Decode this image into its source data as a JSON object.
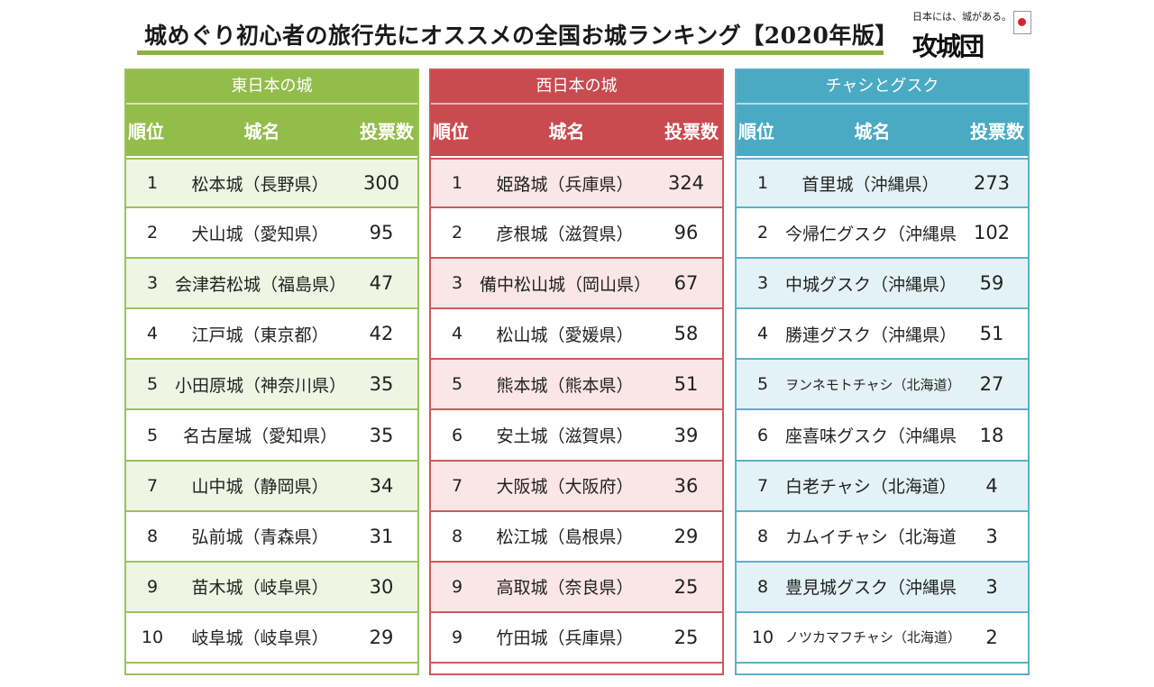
{
  "title": "城めぐり初心者の旅行先にオススメの全国お城ランキング【2020年版】",
  "logo": {
    "tagline": "日本には、城がある。",
    "mark": "攻城団"
  },
  "columns": {
    "rank": "順位",
    "name": "城名",
    "votes": "投票数"
  },
  "panels": {
    "east": {
      "heading": "東日本の城",
      "rows": [
        {
          "rank": "1",
          "name": "松本城（長野県）",
          "votes": "300"
        },
        {
          "rank": "2",
          "name": "犬山城（愛知県）",
          "votes": "95"
        },
        {
          "rank": "3",
          "name": "会津若松城（福島県）",
          "votes": "47"
        },
        {
          "rank": "4",
          "name": "江戸城（東京都）",
          "votes": "42"
        },
        {
          "rank": "5",
          "name": "小田原城（神奈川県）",
          "votes": "35"
        },
        {
          "rank": "5",
          "name": "名古屋城（愛知県）",
          "votes": "35"
        },
        {
          "rank": "7",
          "name": "山中城（静岡県）",
          "votes": "34"
        },
        {
          "rank": "8",
          "name": "弘前城（青森県）",
          "votes": "31"
        },
        {
          "rank": "9",
          "name": "苗木城（岐阜県）",
          "votes": "30"
        },
        {
          "rank": "10",
          "name": "岐阜城（岐阜県）",
          "votes": "29"
        }
      ]
    },
    "west": {
      "heading": "西日本の城",
      "rows": [
        {
          "rank": "1",
          "name": "姫路城（兵庫県）",
          "votes": "324"
        },
        {
          "rank": "2",
          "name": "彦根城（滋賀県）",
          "votes": "96"
        },
        {
          "rank": "3",
          "name": "備中松山城（岡山県）",
          "votes": "67"
        },
        {
          "rank": "4",
          "name": "松山城（愛媛県）",
          "votes": "58"
        },
        {
          "rank": "5",
          "name": "熊本城（熊本県）",
          "votes": "51"
        },
        {
          "rank": "6",
          "name": "安土城（滋賀県）",
          "votes": "39"
        },
        {
          "rank": "7",
          "name": "大阪城（大阪府）",
          "votes": "36"
        },
        {
          "rank": "8",
          "name": "松江城（島根県）",
          "votes": "29"
        },
        {
          "rank": "9",
          "name": "高取城（奈良県）",
          "votes": "25"
        },
        {
          "rank": "9",
          "name": "竹田城（兵庫県）",
          "votes": "25"
        }
      ]
    },
    "ryukyu": {
      "heading": "チャシとグスク",
      "rows": [
        {
          "rank": "1",
          "name": "首里城（沖縄県）",
          "votes": "273"
        },
        {
          "rank": "2",
          "name": "今帰仁グスク（沖縄県）",
          "votes": "102"
        },
        {
          "rank": "3",
          "name": "中城グスク（沖縄県）",
          "votes": "59"
        },
        {
          "rank": "4",
          "name": "勝連グスク（沖縄県）",
          "votes": "51"
        },
        {
          "rank": "5",
          "name": "ヲンネモトチャシ（北海道）",
          "votes": "27"
        },
        {
          "rank": "6",
          "name": "座喜味グスク（沖縄県）",
          "votes": "18"
        },
        {
          "rank": "7",
          "name": "白老チャシ（北海道）",
          "votes": "4"
        },
        {
          "rank": "8",
          "name": "カムイチャシ（北海道）",
          "votes": "3"
        },
        {
          "rank": "8",
          "name": "豊見城グスク（沖縄県）",
          "votes": "3"
        },
        {
          "rank": "10",
          "name": "ノツカマフチャシ（北海道）",
          "votes": "2"
        }
      ]
    }
  }
}
